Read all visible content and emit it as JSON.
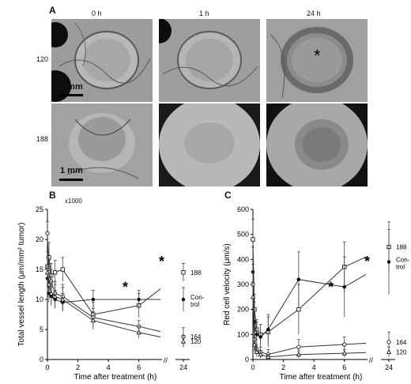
{
  "panels": {
    "a": {
      "label": "A",
      "time_headers": [
        "0 h",
        "1 h",
        "24 h"
      ],
      "row_labels": [
        "120",
        "188"
      ],
      "scale_bar": "1 mm",
      "marker": "*"
    },
    "b": {
      "label": "B",
      "multiplier": "x1000"
    },
    "c": {
      "label": "C"
    }
  },
  "chart_data": [
    {
      "type": "line",
      "panel": "B",
      "ylabel": "Total vessel length (μm/mm² tumor)",
      "xlabel": "Time after treatment (h)",
      "ylim": [
        0,
        25
      ],
      "yticks": [
        0,
        5,
        10,
        15,
        20,
        25
      ],
      "xticks": [
        0,
        2,
        4,
        6,
        24
      ],
      "axis_break": "//",
      "annotations": [
        "*",
        "*"
      ],
      "series": [
        {
          "name": "188",
          "marker": "open-square",
          "x": [
            0,
            0.1,
            0.25,
            0.5,
            1,
            3,
            6,
            24
          ],
          "y": [
            15.5,
            17,
            14,
            14.5,
            15,
            7.5,
            9,
            14.5
          ],
          "err": [
            2.5,
            2.5,
            2,
            2,
            2,
            2,
            2,
            1.5
          ]
        },
        {
          "name": "Control",
          "marker": "filled-circle",
          "x": [
            0,
            0.1,
            0.25,
            0.5,
            1,
            3,
            6,
            24
          ],
          "y": [
            13.5,
            11,
            10.5,
            10,
            9.5,
            10,
            10,
            10
          ],
          "err": [
            2,
            1.5,
            1.5,
            1.5,
            1.5,
            1.5,
            1.5,
            2
          ]
        },
        {
          "name": "164",
          "marker": "open-circle",
          "x": [
            0,
            0.1,
            0.25,
            0.5,
            1,
            3,
            6,
            24
          ],
          "y": [
            21,
            14.5,
            13,
            11,
            10.5,
            7,
            5.5,
            3.8
          ],
          "err": [
            2,
            2,
            2,
            2,
            2,
            1.5,
            1,
            1.5
          ]
        },
        {
          "name": "120",
          "marker": "open-triangle",
          "x": [
            0,
            0.1,
            0.25,
            0.5,
            1,
            3,
            6,
            24
          ],
          "y": [
            14.5,
            12.5,
            11,
            10.5,
            10,
            6.5,
            4.5,
            3
          ],
          "err": [
            2.5,
            2,
            2,
            2,
            2,
            1.5,
            1,
            1
          ]
        }
      ]
    },
    {
      "type": "line",
      "panel": "C",
      "ylabel": "Red cell velocity (μm/s)",
      "xlabel": "Time after treatment (h)",
      "ylim": [
        0,
        600
      ],
      "yticks": [
        0,
        100,
        200,
        300,
        400,
        500,
        600
      ],
      "xticks": [
        0,
        2,
        4,
        6,
        24
      ],
      "axis_break": "//",
      "annotations": [
        "*",
        "*"
      ],
      "series": [
        {
          "name": "188",
          "marker": "open-square",
          "x": [
            0,
            0.1,
            0.25,
            0.5,
            1,
            3,
            6,
            24
          ],
          "y": [
            480,
            200,
            120,
            100,
            110,
            200,
            370,
            450
          ],
          "err": [
            80,
            60,
            40,
            40,
            60,
            100,
            100,
            100
          ]
        },
        {
          "name": "Control",
          "marker": "filled-circle",
          "x": [
            0,
            0.1,
            0.25,
            0.5,
            1,
            3,
            6,
            24
          ],
          "y": [
            350,
            150,
            100,
            90,
            120,
            320,
            290,
            390
          ],
          "err": [
            100,
            80,
            50,
            50,
            60,
            110,
            120,
            130
          ]
        },
        {
          "name": "164",
          "marker": "open-circle",
          "x": [
            0,
            0.1,
            0.25,
            0.5,
            1,
            3,
            6,
            24
          ],
          "y": [
            300,
            80,
            40,
            30,
            20,
            50,
            60,
            70
          ],
          "err": [
            80,
            40,
            20,
            20,
            20,
            30,
            30,
            40
          ]
        },
        {
          "name": "120",
          "marker": "open-triangle",
          "x": [
            0,
            0.1,
            0.25,
            0.5,
            1,
            3,
            6,
            24
          ],
          "y": [
            250,
            60,
            30,
            20,
            10,
            20,
            25,
            30
          ],
          "err": [
            60,
            30,
            20,
            15,
            10,
            15,
            15,
            20
          ]
        }
      ]
    }
  ]
}
